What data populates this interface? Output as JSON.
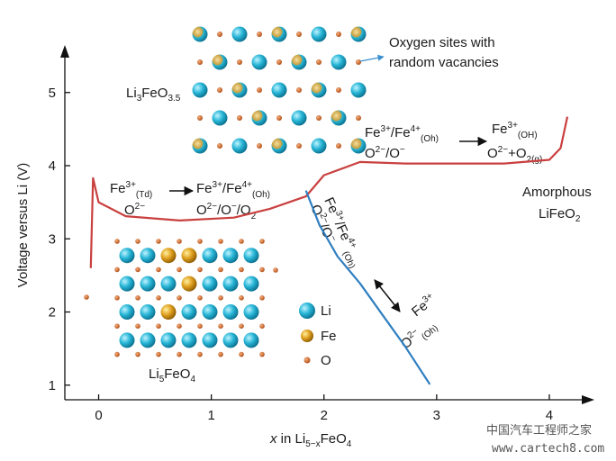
{
  "chart_data": {
    "type": "line",
    "xlabel": [
      "x",
      " in Li",
      "5−x",
      "FeO",
      "4"
    ],
    "ylabel": "Voltage versus Li (V)",
    "xlim": [
      -0.3,
      4.4
    ],
    "ylim": [
      0.8,
      5.6
    ],
    "xticks": [
      0,
      1,
      2,
      3,
      4
    ],
    "yticks": [
      1,
      2,
      3,
      4,
      5
    ],
    "series": [
      {
        "color": "#c9403f",
        "x": [
          -0.07,
          -0.05,
          0,
          0.24,
          0.72,
          1.2,
          1.52,
          1.84,
          2.0,
          2.32,
          2.72,
          3.12,
          3.6,
          4.0,
          4.1,
          4.16
        ],
        "values": [
          2.6,
          3.83,
          3.5,
          3.31,
          3.25,
          3.29,
          3.41,
          3.58,
          3.87,
          4.05,
          4.03,
          4.03,
          4.03,
          4.08,
          4.24,
          4.67
        ]
      },
      {
        "color": "#2f7fc1",
        "x": [
          1.84,
          1.96,
          2.12,
          2.32,
          2.52,
          2.72,
          2.94
        ],
        "values": [
          3.66,
          3.19,
          2.76,
          2.39,
          1.96,
          1.53,
          1.01
        ]
      }
    ]
  },
  "labels": {
    "lattice_top": [
      "Li",
      "3",
      "FeO",
      "3.5"
    ],
    "lattice_note": [
      "Oxygen sites with",
      "random vacancies"
    ],
    "td_fe": [
      "Fe",
      "3+",
      "(Td)"
    ],
    "td_o": [
      "O",
      "2−"
    ],
    "oh_fe": [
      "Fe",
      "3+",
      "/Fe",
      "4+",
      "(Oh)"
    ],
    "oh_o": [
      "O",
      "2−",
      "/O",
      "−",
      "/O",
      "2"
    ],
    "hi_fe": [
      "Fe",
      "3+",
      "/Fe",
      "4+",
      "(Oh)"
    ],
    "hi_o": [
      "O",
      "2−",
      "/O",
      "−"
    ],
    "gas_fe": [
      "Fe",
      "3+",
      "(OH)"
    ],
    "gas_o": [
      "O",
      "2−",
      "+O",
      "2(g)"
    ],
    "amorphous": [
      "Amorphous",
      "LiFeO",
      "2"
    ],
    "blue_fe": [
      "Fe",
      "3+",
      "/Fe",
      "4+",
      "(Oh)"
    ],
    "blue_o": [
      "O",
      "2−",
      "/O",
      "−"
    ],
    "low_fe": [
      "Fe",
      "3+"
    ],
    "low_o": [
      "O",
      "2−",
      "(Oh)"
    ],
    "legend": [
      "Li",
      "Fe",
      "O"
    ],
    "lattice_bottom": [
      "Li",
      "5",
      "FeO",
      "4"
    ],
    "watermark": [
      "中国汽车工程师之家",
      "www.cartech8.com"
    ]
  }
}
